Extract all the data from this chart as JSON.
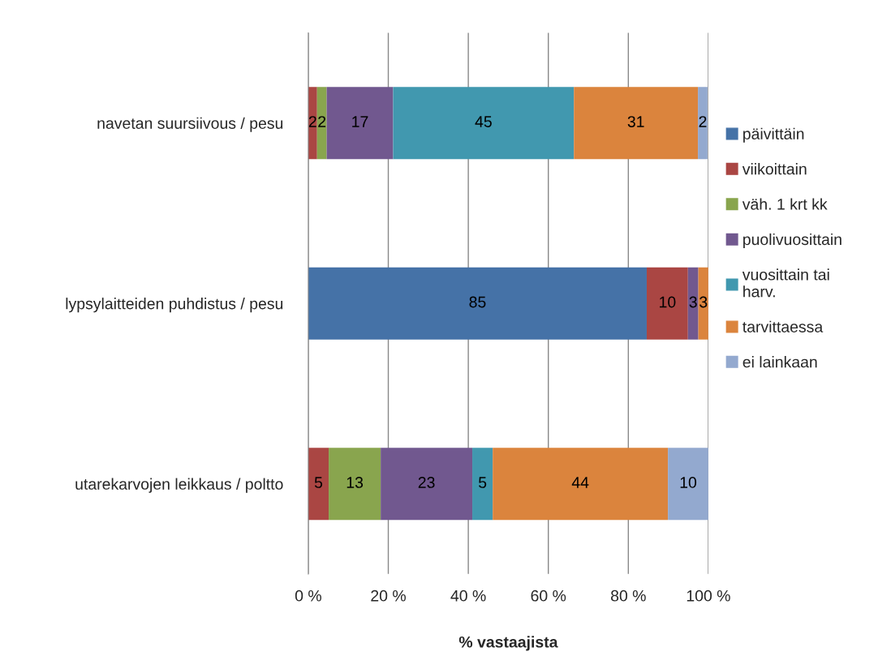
{
  "chart_data": {
    "type": "bar",
    "orientation": "horizontal",
    "stacked": true,
    "xlabel": "% vastaajista",
    "categories": [
      "navetan suursiivous / pesu",
      "lypsylaitteiden puhdistus / pesu",
      "utarekarvojen leikkaus / poltto"
    ],
    "series": [
      {
        "name": "päivittäin",
        "color": "#4572a7",
        "values": [
          0,
          84.6,
          0
        ],
        "value_labels": [
          null,
          "85",
          null
        ]
      },
      {
        "name": "viikoittain",
        "color": "#aa4643",
        "values": [
          2.2,
          10.3,
          5.1
        ],
        "value_labels": [
          "2",
          "10",
          "5"
        ]
      },
      {
        "name": "väh. 1 krt kk",
        "color": "#89a54e",
        "values": [
          2.4,
          0,
          13.0
        ],
        "value_labels": [
          "2",
          null,
          "13"
        ]
      },
      {
        "name": "puolivuosittain",
        "color": "#71588f",
        "values": [
          16.6,
          2.6,
          22.9
        ],
        "value_labels": [
          "17",
          "3",
          "23"
        ]
      },
      {
        "name": "vuosittain tai\nharv.",
        "color": "#4198af",
        "values": [
          45.2,
          0,
          5.1
        ],
        "value_labels": [
          "45",
          null,
          "5"
        ]
      },
      {
        "name": "tarvittaessa",
        "color": "#db843d",
        "values": [
          31.0,
          2.5,
          43.8
        ],
        "value_labels": [
          "31",
          "3",
          "44"
        ]
      },
      {
        "name": "ei lainkaan",
        "color": "#93a9cf",
        "values": [
          2.4,
          0,
          10.1
        ],
        "value_labels": [
          "2",
          null,
          "10"
        ]
      }
    ],
    "xlim": [
      0,
      100
    ],
    "xticks": [
      {
        "value": 0,
        "label": "0 %"
      },
      {
        "value": 20,
        "label": "20 %"
      },
      {
        "value": 40,
        "label": "40 %"
      },
      {
        "value": 60,
        "label": "60 %"
      },
      {
        "value": 80,
        "label": "80 %"
      },
      {
        "value": 100,
        "label": "100 %"
      }
    ],
    "grid": "x",
    "legend": "right"
  }
}
